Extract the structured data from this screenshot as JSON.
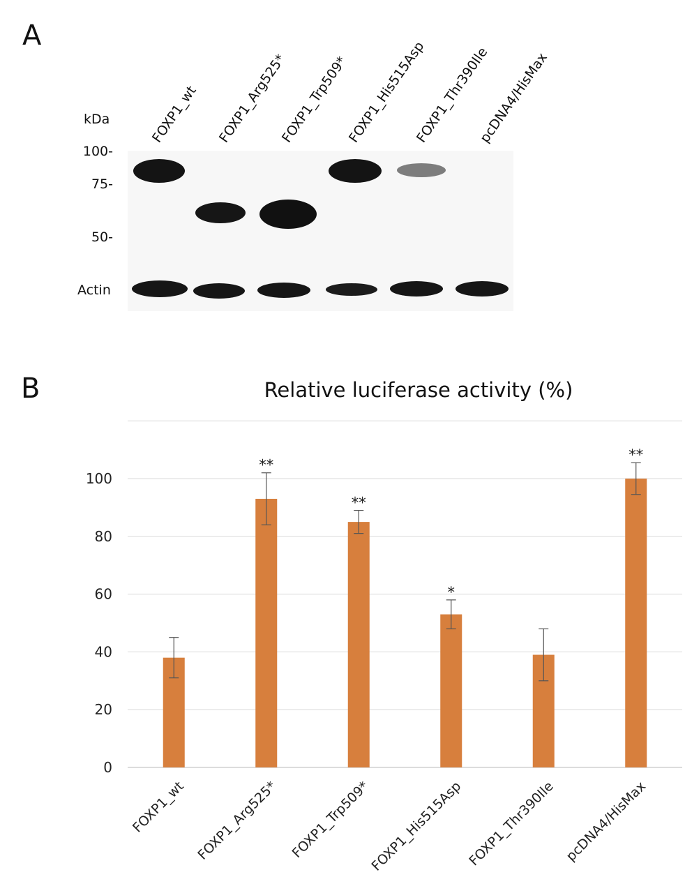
{
  "panel_a": {
    "letter": "A",
    "kda_label": "kDa",
    "markers": [
      "100-",
      "75-",
      "50-"
    ],
    "actin_label": "Actin",
    "lanes": [
      "FOXP1_wt",
      "FOXP1_Arg525*",
      "FOXP1_Trp509*",
      "FOXP1_His515Asp",
      "FOXP1_Thr390Ile",
      "pcDNA4/HisMax"
    ]
  },
  "panel_b": {
    "letter": "B"
  },
  "chart_data": {
    "type": "bar",
    "title": "Relative luciferase activity (%)",
    "categories": [
      "FOXP1_wt",
      "FOXP1_Arg525*",
      "FOXP1_Trp509*",
      "FOXP1_His515Asp",
      "FOXP1_Thr390Ile",
      "pcDNA4/HisMax"
    ],
    "values": [
      38,
      93,
      85,
      53,
      39,
      100
    ],
    "error": [
      7,
      9,
      4,
      5,
      9,
      5.5
    ],
    "significance": [
      "",
      "**",
      "**",
      "*",
      "",
      "**"
    ],
    "ylim": [
      0,
      120
    ],
    "yticks": [
      0,
      20,
      40,
      60,
      80,
      100
    ],
    "xlabel": "",
    "ylabel": "",
    "grid": true,
    "bar_color": "#d77f3d",
    "error_color": "#555555"
  }
}
